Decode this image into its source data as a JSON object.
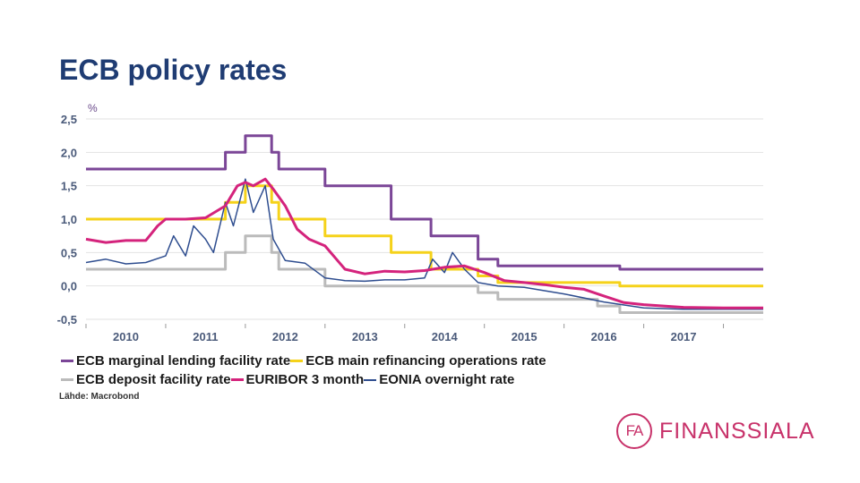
{
  "page": {
    "title": "ECB policy rates"
  },
  "chart_data": {
    "type": "line",
    "title": "ECB policy rates",
    "unit": "%",
    "ylim": [
      -0.5,
      2.5
    ],
    "y_ticks": [
      "2,5",
      "2,0",
      "1,5",
      "1,0",
      "0,5",
      "0,0",
      "-0,5"
    ],
    "y_tick_values": [
      2.5,
      2.0,
      1.5,
      1.0,
      0.5,
      0.0,
      -0.5
    ],
    "xlim": [
      2009.5,
      2018.0
    ],
    "x_ticks": [
      "2010",
      "2011",
      "2012",
      "2013",
      "2014",
      "2015",
      "2016",
      "2017"
    ],
    "x_tick_values": [
      2010,
      2011,
      2012,
      2013,
      2014,
      2015,
      2016,
      2017
    ],
    "grid": true,
    "source": "Lähde: Macrobond",
    "series": [
      {
        "name": "ECB marginal lending facility rate",
        "color": "#7b4697",
        "step": true,
        "x": [
          2009.5,
          2011.25,
          2011.5,
          2011.83,
          2011.92,
          2012.5,
          2013.33,
          2013.83,
          2014.42,
          2014.67,
          2015.92,
          2016.2,
          2018.0
        ],
        "y": [
          1.75,
          2.0,
          2.25,
          2.0,
          1.75,
          1.5,
          1.0,
          0.75,
          0.4,
          0.3,
          0.3,
          0.25,
          0.25
        ]
      },
      {
        "name": "ECB main refinancing operations rate",
        "color": "#f5d21a",
        "step": true,
        "x": [
          2009.5,
          2011.25,
          2011.5,
          2011.83,
          2011.92,
          2012.5,
          2013.33,
          2013.83,
          2014.42,
          2014.67,
          2015.92,
          2016.2,
          2018.0
        ],
        "y": [
          1.0,
          1.25,
          1.5,
          1.25,
          1.0,
          0.75,
          0.5,
          0.25,
          0.15,
          0.05,
          0.05,
          0.0,
          0.0
        ]
      },
      {
        "name": "ECB deposit facility rate",
        "color": "#bbbbbb",
        "step": true,
        "x": [
          2009.5,
          2011.25,
          2011.5,
          2011.83,
          2011.92,
          2012.5,
          2013.83,
          2014.42,
          2014.67,
          2015.92,
          2016.2,
          2018.0
        ],
        "y": [
          0.25,
          0.5,
          0.75,
          0.5,
          0.25,
          0.0,
          0.0,
          -0.1,
          -0.2,
          -0.3,
          -0.4,
          -0.4
        ]
      },
      {
        "name": "EURIBOR 3 month",
        "color": "#d4237c",
        "step": false,
        "x": [
          2009.5,
          2009.75,
          2010.0,
          2010.25,
          2010.4,
          2010.5,
          2010.75,
          2011.0,
          2011.25,
          2011.4,
          2011.5,
          2011.6,
          2011.75,
          2011.85,
          2012.0,
          2012.15,
          2012.3,
          2012.5,
          2012.75,
          2013.0,
          2013.25,
          2013.5,
          2013.75,
          2014.0,
          2014.25,
          2014.5,
          2014.75,
          2015.0,
          2015.25,
          2015.5,
          2015.75,
          2016.0,
          2016.25,
          2016.5,
          2016.75,
          2017.0,
          2017.5,
          2018.0
        ],
        "y": [
          0.7,
          0.65,
          0.68,
          0.68,
          0.9,
          1.0,
          1.0,
          1.02,
          1.2,
          1.5,
          1.55,
          1.5,
          1.6,
          1.45,
          1.2,
          0.85,
          0.7,
          0.6,
          0.25,
          0.18,
          0.22,
          0.21,
          0.23,
          0.28,
          0.3,
          0.2,
          0.08,
          0.05,
          0.02,
          -0.02,
          -0.05,
          -0.15,
          -0.25,
          -0.28,
          -0.3,
          -0.32,
          -0.33,
          -0.33
        ]
      },
      {
        "name": "EONIA overnight rate",
        "color": "#2e4d8f",
        "step": false,
        "x": [
          2009.5,
          2009.75,
          2010.0,
          2010.25,
          2010.5,
          2010.6,
          2010.75,
          2010.85,
          2011.0,
          2011.1,
          2011.25,
          2011.35,
          2011.5,
          2011.6,
          2011.75,
          2011.85,
          2012.0,
          2012.25,
          2012.5,
          2012.75,
          2013.0,
          2013.25,
          2013.5,
          2013.75,
          2013.85,
          2014.0,
          2014.1,
          2014.25,
          2014.42,
          2014.67,
          2015.0,
          2015.5,
          2016.0,
          2016.5,
          2017.0,
          2017.5,
          2018.0
        ],
        "y": [
          0.35,
          0.4,
          0.33,
          0.35,
          0.45,
          0.75,
          0.45,
          0.9,
          0.7,
          0.5,
          1.25,
          0.9,
          1.6,
          1.1,
          1.5,
          0.7,
          0.38,
          0.34,
          0.12,
          0.08,
          0.07,
          0.09,
          0.09,
          0.12,
          0.4,
          0.2,
          0.5,
          0.25,
          0.05,
          0.0,
          -0.02,
          -0.12,
          -0.24,
          -0.33,
          -0.35,
          -0.35,
          -0.35
        ]
      }
    ],
    "legend": {
      "rows": [
        [
          {
            "label": "ECB marginal lending facility rate",
            "color": "#7b4697",
            "thin": false
          },
          {
            "label": "ECB main refinancing operations rate",
            "color": "#f5d21a",
            "thin": false
          }
        ],
        [
          {
            "label": "ECB deposit facility rate",
            "color": "#bbbbbb",
            "thin": false
          },
          {
            "label": "EURIBOR 3 month",
            "color": "#d4237c",
            "thin": false
          },
          {
            "label": "EONIA overnight rate",
            "color": "#2e4d8f",
            "thin": true
          }
        ]
      ]
    }
  },
  "branding": {
    "logo_mark": "FA",
    "logo_text": "FINANSSIALA",
    "brand_color": "#c8326a",
    "title_color": "#1f3c73"
  }
}
